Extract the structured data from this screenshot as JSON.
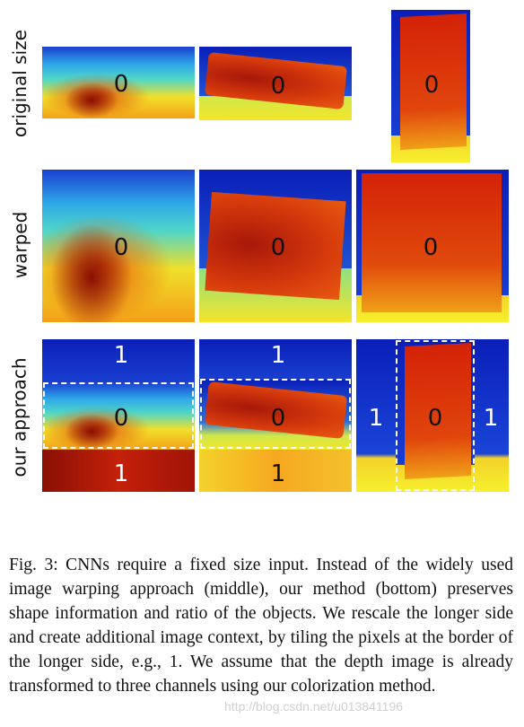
{
  "rows": {
    "original": "original size",
    "warped": "warped",
    "ours": "our approach"
  },
  "labels": {
    "zero": "0",
    "one": "1"
  },
  "caption": "Fig. 3: CNNs require a fixed size input. Instead of the widely used image warping approach (middle), our method (bottom) preserves shape information and ratio of the objects. We rescale the longer side and create additional image context, by tiling the pixels at the border of the longer side, e.g., 1. We assume that the depth image is already transformed to three channels using our colorization method.",
  "watermark": "http://blog.csdn.net/u013841196",
  "colors": {
    "deep_blue": "#0a1fb8",
    "cyan": "#29c4e6",
    "yellow": "#f2e829",
    "orange": "#f07a10",
    "red": "#d42208",
    "dark_red": "#8a1004"
  }
}
